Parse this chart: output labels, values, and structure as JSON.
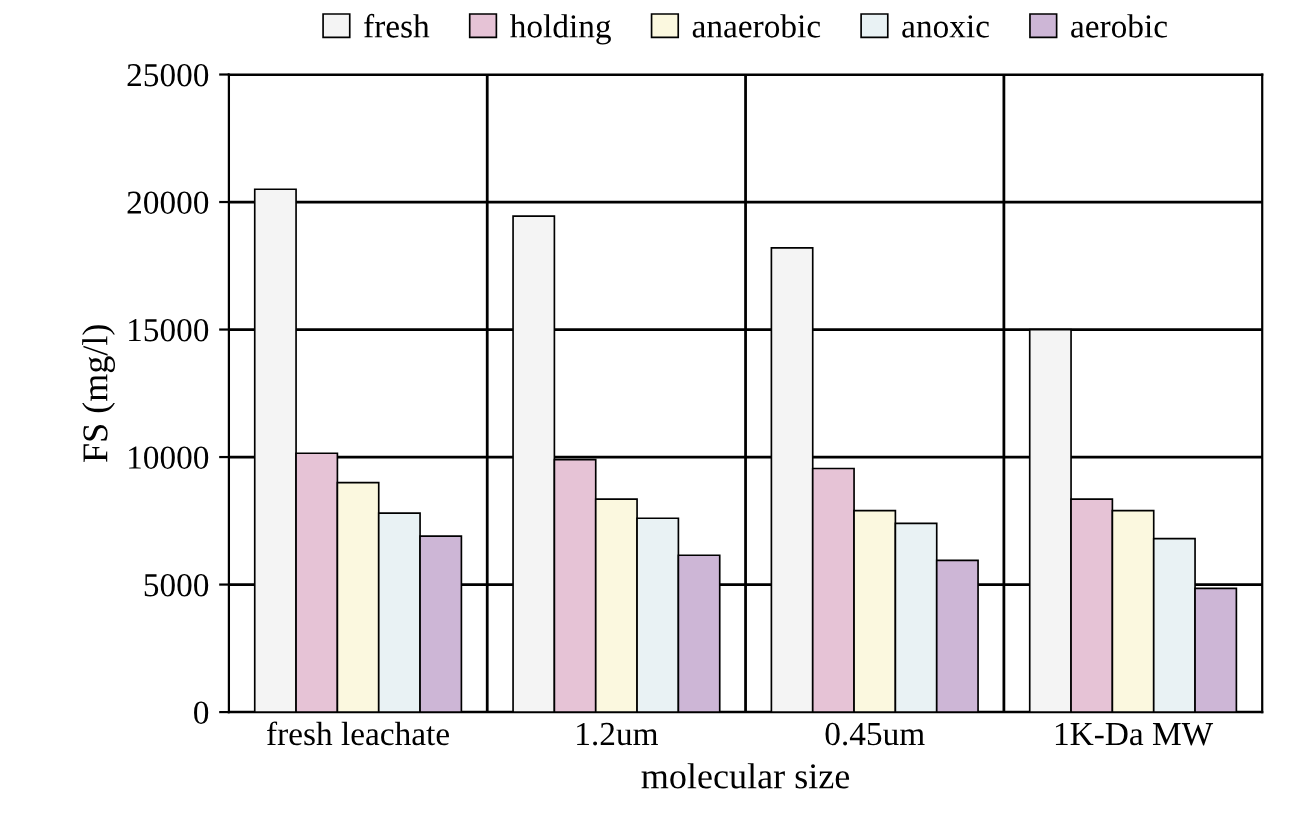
{
  "chart_data": {
    "type": "bar",
    "xlabel": "molecular size",
    "ylabel": "FS (mg/l)",
    "categories": [
      "fresh leachate",
      "1.2um",
      "0.45um",
      "1K-Da MW"
    ],
    "series": [
      {
        "name": "fresh",
        "color": "#f4f4f4",
        "values": [
          20500,
          19450,
          18200,
          15000
        ]
      },
      {
        "name": "holding",
        "color": "#e6c3d6",
        "values": [
          10150,
          9900,
          9550,
          8350
        ]
      },
      {
        "name": "anaerobic",
        "color": "#fbf8df",
        "values": [
          9000,
          8350,
          7900,
          7900
        ]
      },
      {
        "name": "anoxic",
        "color": "#e9f2f4",
        "values": [
          7800,
          7600,
          7400,
          6800
        ]
      },
      {
        "name": "aerobic",
        "color": "#cdb6d6",
        "values": [
          6900,
          6150,
          5950,
          4850
        ]
      }
    ],
    "ylim": [
      0,
      25000
    ],
    "yticks": [
      0,
      5000,
      10000,
      15000,
      20000,
      25000
    ],
    "grid": true,
    "legend": "top"
  }
}
